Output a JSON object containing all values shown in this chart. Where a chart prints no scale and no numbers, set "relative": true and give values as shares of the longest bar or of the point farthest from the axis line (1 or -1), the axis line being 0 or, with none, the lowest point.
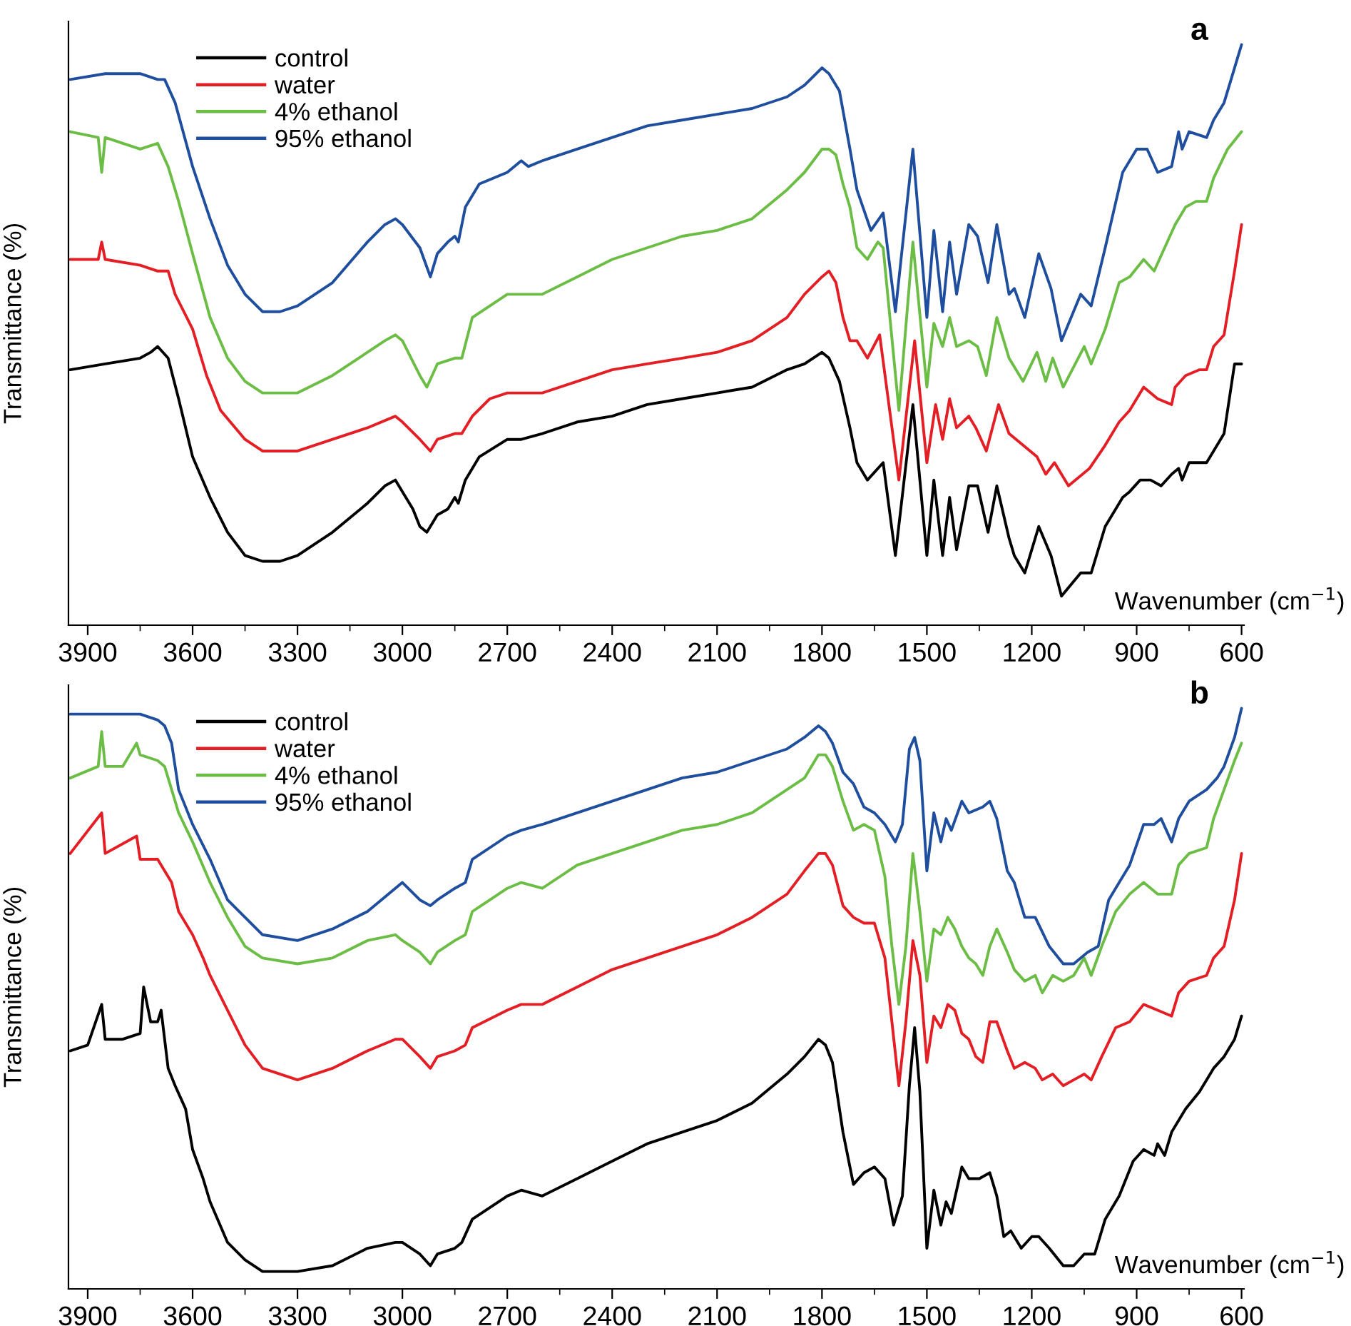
{
  "chart_data": [
    {
      "type": "line",
      "title": "a",
      "xlabel": "Wavenumber (cm$^{−1}$)",
      "ylabel": "Transmittance (%)",
      "relative": true,
      "legend": "top left",
      "tick_labels": "x",
      "xlim": [
        3955,
        593
      ],
      "xticks": [
        3900,
        {
          "value": 3750,
          "label": null
        },
        3600,
        {
          "value": 3450,
          "label": null
        },
        3300,
        {
          "value": 3150,
          "label": null
        },
        3000,
        {
          "value": 2850,
          "label": null
        },
        2700,
        {
          "value": 2550,
          "label": null
        },
        2400,
        {
          "value": 2250,
          "label": null
        },
        2100,
        {
          "value": 1950,
          "label": null
        },
        1800,
        {
          "value": 1650,
          "label": null
        },
        1500,
        {
          "value": 1350,
          "label": null
        },
        1200,
        {
          "value": 1050,
          "label": null
        },
        900,
        {
          "value": 750,
          "label": null
        },
        600
      ],
      "series": [
        {
          "name": "control",
          "color": "#000000",
          "x": [
            3950,
            3850,
            3750,
            3720,
            3700,
            3670,
            3640,
            3600,
            3550,
            3500,
            3450,
            3400,
            3350,
            3300,
            3200,
            3100,
            3050,
            3020,
            3000,
            2970,
            2950,
            2930,
            2900,
            2870,
            2850,
            2840,
            2820,
            2780,
            2700,
            2660,
            2600,
            2500,
            2400,
            2300,
            2200,
            2100,
            2000,
            1900,
            1850,
            1800,
            1780,
            1750,
            1720,
            1700,
            1670,
            1625,
            1590,
            1540,
            1500,
            1480,
            1455,
            1435,
            1415,
            1380,
            1355,
            1325,
            1300,
            1265,
            1250,
            1220,
            1180,
            1145,
            1115,
            1060,
            1030,
            990,
            940,
            920,
            890,
            860,
            830,
            800,
            780,
            770,
            750,
            700,
            680,
            650,
            620,
            600
          ],
          "values": [
            0.44,
            0.45,
            0.46,
            0.47,
            0.48,
            0.46,
            0.39,
            0.29,
            0.22,
            0.16,
            0.12,
            0.11,
            0.11,
            0.12,
            0.16,
            0.21,
            0.24,
            0.25,
            0.23,
            0.2,
            0.17,
            0.16,
            0.19,
            0.2,
            0.22,
            0.21,
            0.25,
            0.29,
            0.32,
            0.32,
            0.33,
            0.35,
            0.36,
            0.38,
            0.39,
            0.4,
            0.41,
            0.44,
            0.45,
            0.47,
            0.46,
            0.42,
            0.34,
            0.28,
            0.25,
            0.28,
            0.12,
            0.38,
            0.12,
            0.25,
            0.12,
            0.22,
            0.13,
            0.24,
            0.24,
            0.16,
            0.24,
            0.15,
            0.12,
            0.09,
            0.17,
            0.12,
            0.05,
            0.09,
            0.09,
            0.17,
            0.22,
            0.23,
            0.25,
            0.25,
            0.24,
            0.26,
            0.27,
            0.25,
            0.28,
            0.28,
            0.3,
            0.33,
            0.45,
            0.45
          ]
        },
        {
          "name": "water",
          "color": "#e31e24",
          "x": [
            3950,
            3870,
            3860,
            3850,
            3750,
            3700,
            3670,
            3650,
            3600,
            3560,
            3520,
            3450,
            3400,
            3300,
            3200,
            3100,
            3020,
            3000,
            2950,
            2920,
            2900,
            2850,
            2830,
            2800,
            2750,
            2700,
            2660,
            2600,
            2500,
            2400,
            2300,
            2200,
            2100,
            2000,
            1900,
            1850,
            1800,
            1780,
            1760,
            1740,
            1720,
            1700,
            1670,
            1635,
            1580,
            1535,
            1500,
            1475,
            1455,
            1435,
            1415,
            1380,
            1360,
            1330,
            1295,
            1265,
            1225,
            1185,
            1160,
            1135,
            1095,
            1035,
            990,
            950,
            920,
            880,
            840,
            800,
            790,
            760,
            720,
            700,
            680,
            650,
            620,
            600
          ],
          "values": [
            0.63,
            0.63,
            0.66,
            0.63,
            0.62,
            0.61,
            0.61,
            0.57,
            0.51,
            0.43,
            0.37,
            0.32,
            0.3,
            0.3,
            0.32,
            0.34,
            0.36,
            0.35,
            0.32,
            0.3,
            0.32,
            0.33,
            0.33,
            0.36,
            0.39,
            0.4,
            0.4,
            0.4,
            0.42,
            0.44,
            0.45,
            0.46,
            0.47,
            0.49,
            0.53,
            0.57,
            0.6,
            0.61,
            0.59,
            0.53,
            0.49,
            0.49,
            0.46,
            0.5,
            0.25,
            0.49,
            0.28,
            0.38,
            0.32,
            0.39,
            0.34,
            0.36,
            0.34,
            0.3,
            0.38,
            0.33,
            0.31,
            0.29,
            0.26,
            0.28,
            0.24,
            0.27,
            0.31,
            0.35,
            0.37,
            0.41,
            0.39,
            0.38,
            0.41,
            0.43,
            0.44,
            0.44,
            0.48,
            0.5,
            0.61,
            0.69
          ]
        },
        {
          "name": "4% ethanol",
          "color": "#6cbd45",
          "x": [
            3950,
            3870,
            3860,
            3850,
            3750,
            3700,
            3670,
            3640,
            3600,
            3550,
            3500,
            3450,
            3400,
            3300,
            3200,
            3100,
            3050,
            3020,
            3000,
            2950,
            2930,
            2900,
            2850,
            2830,
            2800,
            2750,
            2700,
            2660,
            2600,
            2500,
            2400,
            2300,
            2200,
            2100,
            2000,
            1900,
            1850,
            1800,
            1780,
            1760,
            1740,
            1720,
            1700,
            1670,
            1640,
            1625,
            1580,
            1540,
            1500,
            1480,
            1455,
            1435,
            1415,
            1380,
            1355,
            1330,
            1300,
            1265,
            1225,
            1185,
            1160,
            1140,
            1110,
            1050,
            1030,
            990,
            950,
            920,
            880,
            850,
            820,
            790,
            760,
            730,
            700,
            680,
            640,
            600
          ],
          "values": [
            0.85,
            0.84,
            0.78,
            0.84,
            0.82,
            0.83,
            0.79,
            0.73,
            0.64,
            0.53,
            0.46,
            0.42,
            0.4,
            0.4,
            0.43,
            0.47,
            0.49,
            0.5,
            0.49,
            0.43,
            0.41,
            0.45,
            0.46,
            0.46,
            0.53,
            0.55,
            0.57,
            0.57,
            0.57,
            0.6,
            0.63,
            0.65,
            0.67,
            0.68,
            0.7,
            0.75,
            0.78,
            0.82,
            0.82,
            0.81,
            0.76,
            0.72,
            0.65,
            0.63,
            0.66,
            0.65,
            0.37,
            0.66,
            0.41,
            0.52,
            0.48,
            0.53,
            0.48,
            0.49,
            0.48,
            0.43,
            0.53,
            0.46,
            0.42,
            0.47,
            0.42,
            0.46,
            0.41,
            0.48,
            0.45,
            0.51,
            0.59,
            0.6,
            0.63,
            0.61,
            0.65,
            0.69,
            0.72,
            0.73,
            0.73,
            0.77,
            0.82,
            0.85
          ]
        },
        {
          "name": "95% ethanol",
          "color": "#1f4e9e",
          "x": [
            3950,
            3850,
            3750,
            3700,
            3680,
            3650,
            3600,
            3550,
            3500,
            3450,
            3400,
            3350,
            3300,
            3200,
            3100,
            3050,
            3020,
            3000,
            2950,
            2920,
            2900,
            2870,
            2850,
            2840,
            2820,
            2780,
            2700,
            2660,
            2640,
            2600,
            2500,
            2400,
            2300,
            2200,
            2100,
            2000,
            1900,
            1850,
            1800,
            1780,
            1750,
            1720,
            1700,
            1660,
            1625,
            1590,
            1540,
            1500,
            1480,
            1455,
            1435,
            1415,
            1380,
            1355,
            1325,
            1300,
            1265,
            1250,
            1220,
            1180,
            1145,
            1115,
            1060,
            1030,
            990,
            940,
            900,
            870,
            840,
            800,
            780,
            770,
            750,
            700,
            680,
            650,
            620,
            600
          ],
          "values": [
            0.94,
            0.95,
            0.95,
            0.94,
            0.94,
            0.9,
            0.79,
            0.7,
            0.62,
            0.57,
            0.54,
            0.54,
            0.55,
            0.59,
            0.66,
            0.69,
            0.7,
            0.69,
            0.65,
            0.6,
            0.64,
            0.66,
            0.67,
            0.66,
            0.72,
            0.76,
            0.78,
            0.8,
            0.79,
            0.8,
            0.82,
            0.84,
            0.86,
            0.87,
            0.88,
            0.89,
            0.91,
            0.93,
            0.96,
            0.95,
            0.92,
            0.82,
            0.75,
            0.68,
            0.71,
            0.54,
            0.82,
            0.53,
            0.68,
            0.54,
            0.66,
            0.57,
            0.69,
            0.67,
            0.59,
            0.69,
            0.57,
            0.58,
            0.53,
            0.64,
            0.58,
            0.49,
            0.57,
            0.55,
            0.65,
            0.78,
            0.82,
            0.82,
            0.78,
            0.79,
            0.85,
            0.82,
            0.85,
            0.84,
            0.87,
            0.9,
            0.96,
            1.0
          ]
        }
      ]
    },
    {
      "type": "line",
      "title": "b",
      "xlabel": "Wavenumber (cm$^{−1}$)",
      "ylabel": "Transmittance (%)",
      "relative": true,
      "legend": "top left",
      "tick_labels": "x",
      "xlim": [
        3955,
        593
      ],
      "xticks": [
        3900,
        {
          "value": 3750,
          "label": null
        },
        3600,
        {
          "value": 3450,
          "label": null
        },
        3300,
        {
          "value": 3150,
          "label": null
        },
        3000,
        {
          "value": 2850,
          "label": null
        },
        2700,
        {
          "value": 2550,
          "label": null
        },
        2400,
        {
          "value": 2250,
          "label": null
        },
        2100,
        {
          "value": 1950,
          "label": null
        },
        1800,
        {
          "value": 1650,
          "label": null
        },
        1500,
        {
          "value": 1350,
          "label": null
        },
        1200,
        {
          "value": 1050,
          "label": null
        },
        900,
        {
          "value": 750,
          "label": null
        },
        600
      ],
      "series": [
        {
          "name": "control",
          "color": "#000000",
          "x": [
            3950,
            3900,
            3860,
            3850,
            3800,
            3750,
            3740,
            3720,
            3700,
            3690,
            3680,
            3670,
            3650,
            3620,
            3600,
            3570,
            3550,
            3500,
            3450,
            3400,
            3350,
            3300,
            3200,
            3100,
            3020,
            3000,
            2950,
            2920,
            2900,
            2850,
            2830,
            2800,
            2750,
            2700,
            2660,
            2600,
            2500,
            2400,
            2300,
            2200,
            2100,
            2000,
            1900,
            1850,
            1810,
            1790,
            1770,
            1740,
            1710,
            1680,
            1650,
            1620,
            1595,
            1570,
            1550,
            1535,
            1520,
            1500,
            1480,
            1460,
            1445,
            1430,
            1400,
            1380,
            1350,
            1320,
            1300,
            1280,
            1260,
            1230,
            1200,
            1180,
            1150,
            1110,
            1080,
            1050,
            1020,
            990,
            950,
            910,
            880,
            850,
            840,
            820,
            800,
            760,
            720,
            700,
            680,
            650,
            620,
            600
          ],
          "values": [
            0.41,
            0.42,
            0.49,
            0.43,
            0.43,
            0.44,
            0.52,
            0.46,
            0.46,
            0.48,
            0.43,
            0.38,
            0.35,
            0.31,
            0.24,
            0.19,
            0.15,
            0.08,
            0.05,
            0.03,
            0.03,
            0.03,
            0.04,
            0.07,
            0.08,
            0.08,
            0.06,
            0.04,
            0.06,
            0.07,
            0.08,
            0.12,
            0.14,
            0.16,
            0.17,
            0.16,
            0.19,
            0.22,
            0.25,
            0.27,
            0.29,
            0.32,
            0.37,
            0.4,
            0.43,
            0.42,
            0.39,
            0.27,
            0.18,
            0.2,
            0.21,
            0.19,
            0.11,
            0.16,
            0.35,
            0.45,
            0.34,
            0.07,
            0.17,
            0.11,
            0.15,
            0.13,
            0.21,
            0.19,
            0.19,
            0.2,
            0.16,
            0.09,
            0.1,
            0.07,
            0.09,
            0.09,
            0.07,
            0.04,
            0.04,
            0.06,
            0.06,
            0.12,
            0.16,
            0.22,
            0.24,
            0.23,
            0.25,
            0.23,
            0.27,
            0.31,
            0.34,
            0.36,
            0.38,
            0.4,
            0.43,
            0.47
          ]
        },
        {
          "name": "water",
          "color": "#e31e24",
          "x": [
            3950,
            3860,
            3850,
            3760,
            3750,
            3700,
            3680,
            3660,
            3640,
            3600,
            3570,
            3550,
            3500,
            3450,
            3400,
            3300,
            3200,
            3100,
            3020,
            3000,
            2950,
            2920,
            2900,
            2850,
            2820,
            2800,
            2700,
            2660,
            2600,
            2500,
            2400,
            2300,
            2200,
            2100,
            2000,
            1900,
            1850,
            1810,
            1790,
            1770,
            1740,
            1710,
            1680,
            1650,
            1620,
            1600,
            1580,
            1560,
            1540,
            1520,
            1500,
            1480,
            1460,
            1440,
            1420,
            1400,
            1380,
            1360,
            1340,
            1320,
            1300,
            1270,
            1250,
            1220,
            1190,
            1170,
            1140,
            1110,
            1080,
            1050,
            1030,
            1000,
            960,
            920,
            880,
            840,
            800,
            780,
            750,
            700,
            680,
            650,
            620,
            600
          ],
          "values": [
            0.75,
            0.82,
            0.75,
            0.78,
            0.74,
            0.74,
            0.72,
            0.7,
            0.65,
            0.61,
            0.57,
            0.54,
            0.48,
            0.42,
            0.38,
            0.36,
            0.38,
            0.41,
            0.43,
            0.43,
            0.4,
            0.38,
            0.4,
            0.41,
            0.42,
            0.45,
            0.48,
            0.49,
            0.49,
            0.52,
            0.55,
            0.57,
            0.59,
            0.61,
            0.64,
            0.68,
            0.72,
            0.75,
            0.75,
            0.73,
            0.66,
            0.64,
            0.63,
            0.63,
            0.57,
            0.46,
            0.35,
            0.46,
            0.6,
            0.54,
            0.39,
            0.47,
            0.45,
            0.49,
            0.48,
            0.44,
            0.43,
            0.4,
            0.39,
            0.46,
            0.46,
            0.41,
            0.38,
            0.39,
            0.38,
            0.36,
            0.37,
            0.35,
            0.36,
            0.37,
            0.36,
            0.4,
            0.45,
            0.46,
            0.49,
            0.48,
            0.47,
            0.51,
            0.53,
            0.54,
            0.57,
            0.59,
            0.67,
            0.75
          ]
        },
        {
          "name": "4% ethanol",
          "color": "#6cbd45",
          "x": [
            3950,
            3870,
            3860,
            3850,
            3800,
            3760,
            3750,
            3700,
            3680,
            3660,
            3640,
            3600,
            3550,
            3500,
            3450,
            3400,
            3300,
            3200,
            3100,
            3020,
            3000,
            2950,
            2920,
            2900,
            2850,
            2820,
            2800,
            2700,
            2660,
            2600,
            2500,
            2400,
            2300,
            2200,
            2100,
            2000,
            1900,
            1850,
            1810,
            1790,
            1770,
            1740,
            1710,
            1680,
            1650,
            1620,
            1600,
            1580,
            1560,
            1540,
            1520,
            1500,
            1480,
            1460,
            1440,
            1420,
            1400,
            1380,
            1360,
            1340,
            1320,
            1300,
            1270,
            1250,
            1220,
            1190,
            1170,
            1140,
            1110,
            1080,
            1050,
            1030,
            1000,
            960,
            920,
            880,
            840,
            800,
            780,
            750,
            700,
            680,
            650,
            620,
            600
          ],
          "values": [
            0.88,
            0.9,
            0.96,
            0.9,
            0.9,
            0.94,
            0.92,
            0.91,
            0.9,
            0.86,
            0.82,
            0.77,
            0.7,
            0.64,
            0.59,
            0.57,
            0.56,
            0.57,
            0.6,
            0.61,
            0.6,
            0.58,
            0.56,
            0.58,
            0.6,
            0.61,
            0.65,
            0.69,
            0.7,
            0.69,
            0.73,
            0.75,
            0.77,
            0.79,
            0.8,
            0.82,
            0.86,
            0.88,
            0.92,
            0.92,
            0.9,
            0.84,
            0.79,
            0.8,
            0.79,
            0.71,
            0.59,
            0.49,
            0.59,
            0.75,
            0.65,
            0.53,
            0.62,
            0.61,
            0.64,
            0.62,
            0.59,
            0.57,
            0.56,
            0.54,
            0.59,
            0.62,
            0.58,
            0.55,
            0.53,
            0.54,
            0.51,
            0.54,
            0.53,
            0.54,
            0.57,
            0.54,
            0.59,
            0.65,
            0.68,
            0.7,
            0.68,
            0.68,
            0.73,
            0.75,
            0.76,
            0.81,
            0.86,
            0.91,
            0.94
          ]
        },
        {
          "name": "95% ethanol",
          "color": "#1f4e9e",
          "x": [
            3950,
            3850,
            3750,
            3700,
            3680,
            3660,
            3640,
            3600,
            3550,
            3500,
            3450,
            3400,
            3300,
            3200,
            3100,
            3000,
            2950,
            2920,
            2900,
            2850,
            2820,
            2800,
            2700,
            2660,
            2600,
            2500,
            2400,
            2300,
            2200,
            2100,
            2000,
            1900,
            1850,
            1810,
            1790,
            1770,
            1740,
            1710,
            1680,
            1650,
            1620,
            1590,
            1570,
            1550,
            1535,
            1520,
            1500,
            1480,
            1460,
            1445,
            1430,
            1400,
            1380,
            1340,
            1320,
            1300,
            1270,
            1250,
            1220,
            1190,
            1150,
            1110,
            1080,
            1040,
            1010,
            980,
            950,
            920,
            880,
            850,
            830,
            800,
            780,
            750,
            700,
            670,
            650,
            620,
            600
          ],
          "values": [
            0.99,
            0.99,
            0.99,
            0.98,
            0.97,
            0.94,
            0.86,
            0.8,
            0.74,
            0.67,
            0.64,
            0.61,
            0.6,
            0.62,
            0.65,
            0.7,
            0.67,
            0.66,
            0.67,
            0.69,
            0.7,
            0.74,
            0.78,
            0.79,
            0.8,
            0.82,
            0.84,
            0.86,
            0.88,
            0.89,
            0.91,
            0.93,
            0.95,
            0.97,
            0.96,
            0.94,
            0.89,
            0.87,
            0.83,
            0.82,
            0.8,
            0.77,
            0.8,
            0.93,
            0.95,
            0.91,
            0.72,
            0.82,
            0.77,
            0.81,
            0.79,
            0.84,
            0.82,
            0.83,
            0.84,
            0.81,
            0.72,
            0.7,
            0.64,
            0.64,
            0.59,
            0.56,
            0.56,
            0.58,
            0.59,
            0.67,
            0.7,
            0.73,
            0.8,
            0.8,
            0.81,
            0.77,
            0.81,
            0.84,
            0.86,
            0.88,
            0.9,
            0.95,
            1.0
          ]
        }
      ]
    }
  ]
}
